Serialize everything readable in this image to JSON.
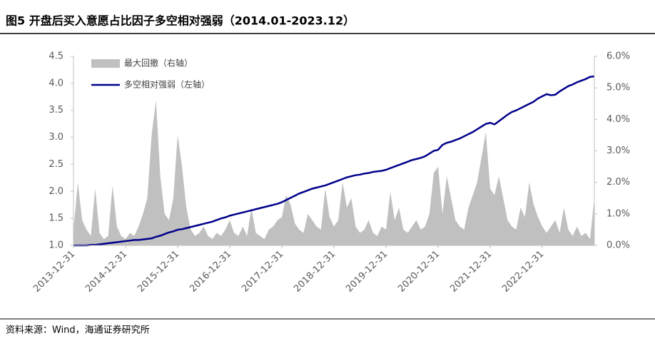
{
  "chart_data": {
    "type": "line",
    "title": "图5  开盘后买入意愿占比因子多空相对强弱（2014.01-2023.12）",
    "source": "资料来源：Wind，海通证券研究所",
    "categories": [
      "2013-12-31",
      null,
      null,
      null,
      null,
      null,
      null,
      null,
      null,
      null,
      null,
      null,
      "2014-12-31",
      null,
      null,
      null,
      null,
      null,
      null,
      null,
      null,
      null,
      null,
      null,
      "2015-12-31",
      null,
      null,
      null,
      null,
      null,
      null,
      null,
      null,
      null,
      null,
      null,
      "2016-12-31",
      null,
      null,
      null,
      null,
      null,
      null,
      null,
      null,
      null,
      null,
      null,
      "2017-12-31",
      null,
      null,
      null,
      null,
      null,
      null,
      null,
      null,
      null,
      null,
      null,
      "2018-12-31",
      null,
      null,
      null,
      null,
      null,
      null,
      null,
      null,
      null,
      null,
      null,
      "2019-12-31",
      null,
      null,
      null,
      null,
      null,
      null,
      null,
      null,
      null,
      null,
      null,
      "2020-12-31",
      null,
      null,
      null,
      null,
      null,
      null,
      null,
      null,
      null,
      null,
      null,
      "2021-12-31",
      null,
      null,
      null,
      null,
      null,
      null,
      null,
      null,
      null,
      null,
      null,
      "2022-12-31",
      null,
      null,
      null,
      null,
      null,
      null,
      null,
      null,
      null,
      null,
      null,
      null
    ],
    "series": [
      {
        "name": "最大回撤（右轴）",
        "type": "area",
        "axis": "y2",
        "color": "#c0c0c0",
        "values": [
          0.5,
          2.0,
          0.8,
          0.5,
          0.3,
          1.8,
          0.4,
          0.2,
          0.3,
          1.9,
          0.6,
          0.3,
          0.2,
          0.4,
          0.3,
          0.6,
          1.0,
          1.5,
          3.5,
          4.6,
          2.2,
          1.0,
          0.8,
          1.5,
          3.5,
          2.5,
          1.2,
          0.5,
          0.3,
          0.4,
          0.6,
          0.3,
          0.2,
          0.4,
          0.3,
          0.5,
          0.8,
          0.4,
          0.3,
          0.6,
          0.3,
          1.2,
          0.4,
          0.3,
          0.2,
          0.5,
          0.6,
          0.8,
          0.9,
          1.6,
          1.3,
          0.7,
          0.5,
          0.4,
          1.0,
          0.8,
          0.6,
          0.5,
          1.8,
          0.9,
          0.6,
          0.8,
          2.0,
          1.2,
          1.5,
          0.6,
          0.4,
          0.5,
          0.8,
          0.4,
          0.3,
          0.6,
          0.5,
          1.7,
          0.8,
          1.2,
          0.5,
          0.4,
          0.6,
          0.8,
          0.5,
          0.6,
          1.0,
          2.3,
          2.5,
          1.0,
          2.2,
          1.5,
          0.8,
          0.6,
          0.5,
          1.2,
          1.6,
          2.0,
          2.8,
          3.6,
          1.8,
          1.6,
          2.2,
          1.5,
          0.8,
          0.6,
          0.5,
          1.2,
          0.9,
          2.0,
          1.3,
          0.9,
          0.6,
          0.4,
          0.6,
          0.8,
          0.4,
          1.2,
          0.5,
          0.3,
          0.6,
          0.3,
          0.4,
          0.2,
          1.5
        ]
      },
      {
        "name": "多空相对强弱（左轴）",
        "type": "line",
        "color": "#00008b",
        "values": [
          1.0,
          1.0,
          1.0,
          1.0,
          1.01,
          1.01,
          1.02,
          1.03,
          1.04,
          1.05,
          1.06,
          1.07,
          1.08,
          1.09,
          1.1,
          1.1,
          1.11,
          1.12,
          1.13,
          1.16,
          1.18,
          1.21,
          1.24,
          1.26,
          1.29,
          1.3,
          1.32,
          1.34,
          1.36,
          1.38,
          1.4,
          1.42,
          1.44,
          1.47,
          1.5,
          1.52,
          1.55,
          1.57,
          1.59,
          1.61,
          1.63,
          1.65,
          1.67,
          1.69,
          1.71,
          1.73,
          1.75,
          1.77,
          1.8,
          1.84,
          1.88,
          1.92,
          1.96,
          1.99,
          2.02,
          2.05,
          2.07,
          2.09,
          2.11,
          2.14,
          2.17,
          2.2,
          2.23,
          2.26,
          2.28,
          2.3,
          2.31,
          2.33,
          2.34,
          2.36,
          2.37,
          2.38,
          2.4,
          2.43,
          2.46,
          2.49,
          2.52,
          2.55,
          2.58,
          2.6,
          2.62,
          2.65,
          2.7,
          2.75,
          2.77,
          2.86,
          2.9,
          2.92,
          2.95,
          2.98,
          3.02,
          3.06,
          3.1,
          3.15,
          3.2,
          3.25,
          3.27,
          3.24,
          3.3,
          3.36,
          3.42,
          3.47,
          3.5,
          3.54,
          3.58,
          3.62,
          3.66,
          3.72,
          3.76,
          3.8,
          3.78,
          3.79,
          3.85,
          3.9,
          3.95,
          3.98,
          4.02,
          4.05,
          4.08,
          4.12,
          4.13
        ]
      }
    ],
    "ylim": [
      1,
      4.5
    ],
    "yticks": [
      {
        "value": 1,
        "label": "1.0"
      },
      {
        "value": 1.5,
        "label": "1.5"
      },
      {
        "value": 2,
        "label": "2.0"
      },
      {
        "value": 2.5,
        "label": "2.5"
      },
      {
        "value": 3,
        "label": "3.0"
      },
      {
        "value": 3.5,
        "label": "3.5"
      },
      {
        "value": 4,
        "label": "4.0"
      },
      {
        "value": 4.5,
        "label": "4.5"
      }
    ],
    "y2lim": [
      0,
      6
    ],
    "y2ticks": [
      {
        "value": 0,
        "label": "0.0%"
      },
      {
        "value": 1,
        "label": "1.0%"
      },
      {
        "value": 2,
        "label": "2.0%"
      },
      {
        "value": 3,
        "label": "3.0%"
      },
      {
        "value": 4,
        "label": "4.0%"
      },
      {
        "value": 5,
        "label": "5.0%"
      },
      {
        "value": 6,
        "label": "6.0%"
      }
    ],
    "legend": "top-left",
    "grid": false
  }
}
